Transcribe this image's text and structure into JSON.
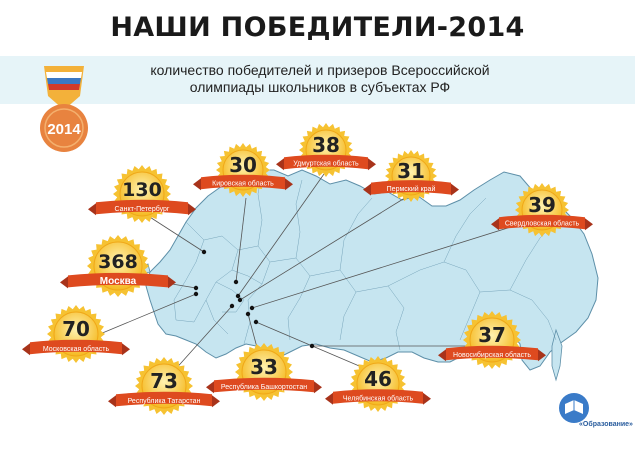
{
  "title": "НАШИ ПОБЕДИТЕЛИ-2014",
  "subtitle_line1": "количество победителей и призеров Всероссийской",
  "subtitle_line2": "олимпиады школьников в субъектах РФ",
  "medal": {
    "year": "2014"
  },
  "colors": {
    "map_fill": "#c6e5f0",
    "map_stroke": "#5d8fa8",
    "band": "#e6f4f8",
    "medal_gold": "#f6c232",
    "medal_inner": "#fde48c",
    "ribbon": "#de4a1f",
    "number": "#222222",
    "medal_orange": "#e8833f"
  },
  "regions": [
    {
      "value": "130",
      "name": "Санкт-Петербург"
    },
    {
      "value": "30",
      "name": "Кировская область"
    },
    {
      "value": "38",
      "name": "Удмуртская область"
    },
    {
      "value": "31",
      "name": "Пермский край"
    },
    {
      "value": "39",
      "name": "Свердловская область"
    },
    {
      "value": "368",
      "name": "Москва"
    },
    {
      "value": "70",
      "name": "Московская область"
    },
    {
      "value": "73",
      "name": "Республика Татарстан"
    },
    {
      "value": "33",
      "name": "Республика Башкортостан"
    },
    {
      "value": "46",
      "name": "Челябинская область"
    },
    {
      "value": "37",
      "name": "Новосибирская область"
    }
  ],
  "logo": {
    "name": "«Образование»"
  }
}
